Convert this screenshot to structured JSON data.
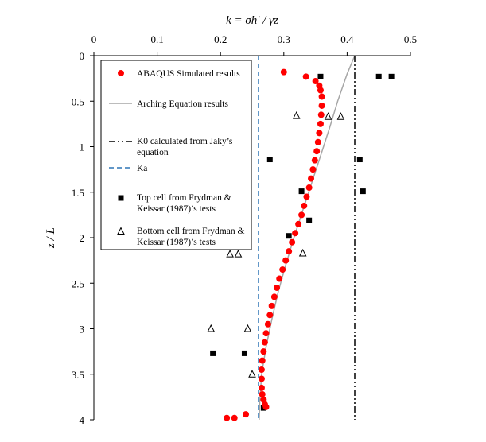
{
  "chart_data": {
    "type": "scatter",
    "x_axis": {
      "label": "k = σh' / γz",
      "range": [
        0,
        0.5
      ],
      "ticks": [
        "0",
        "0.1",
        "0.2",
        "0.3",
        "0.4",
        "0.5"
      ],
      "position": "top"
    },
    "y_axis": {
      "label": "z / L",
      "range": [
        0,
        4
      ],
      "inverted": true,
      "ticks": [
        "0",
        "0.5",
        "1",
        "1.5",
        "2",
        "2.5",
        "3",
        "3.5",
        "4"
      ]
    },
    "grid": false,
    "legend_position": "left",
    "legend_entries": [
      "ABAQUS Simulated results",
      "Arching Equation results",
      "K0 calculated from Jaky's equation",
      "Ka",
      "Top cell from Frydman & Keissar (1987)'s tests",
      "Bottom cell from Frydman & Keissar (1987)'s tests"
    ],
    "series": [
      {
        "name": "ABAQUS Simulated results",
        "style": "marker-circle",
        "color": "#ff0000",
        "points": [
          [
            0.3,
            0.18
          ],
          [
            0.335,
            0.23
          ],
          [
            0.35,
            0.28
          ],
          [
            0.356,
            0.33
          ],
          [
            0.358,
            0.38
          ],
          [
            0.36,
            0.45
          ],
          [
            0.36,
            0.55
          ],
          [
            0.359,
            0.65
          ],
          [
            0.358,
            0.75
          ],
          [
            0.356,
            0.85
          ],
          [
            0.354,
            0.95
          ],
          [
            0.352,
            1.05
          ],
          [
            0.349,
            1.15
          ],
          [
            0.346,
            1.25
          ],
          [
            0.343,
            1.35
          ],
          [
            0.34,
            1.45
          ],
          [
            0.336,
            1.55
          ],
          [
            0.332,
            1.65
          ],
          [
            0.328,
            1.75
          ],
          [
            0.323,
            1.85
          ],
          [
            0.318,
            1.95
          ],
          [
            0.313,
            2.05
          ],
          [
            0.308,
            2.15
          ],
          [
            0.303,
            2.25
          ],
          [
            0.298,
            2.35
          ],
          [
            0.293,
            2.45
          ],
          [
            0.289,
            2.55
          ],
          [
            0.285,
            2.65
          ],
          [
            0.281,
            2.75
          ],
          [
            0.278,
            2.85
          ],
          [
            0.275,
            2.95
          ],
          [
            0.272,
            3.05
          ],
          [
            0.27,
            3.15
          ],
          [
            0.268,
            3.25
          ],
          [
            0.266,
            3.35
          ],
          [
            0.265,
            3.45
          ],
          [
            0.265,
            3.55
          ],
          [
            0.265,
            3.65
          ],
          [
            0.266,
            3.72
          ],
          [
            0.268,
            3.78
          ],
          [
            0.27,
            3.83
          ],
          [
            0.272,
            3.86
          ],
          [
            0.24,
            3.94
          ],
          [
            0.222,
            3.98
          ],
          [
            0.21,
            3.98
          ]
        ]
      },
      {
        "name": "Arching Equation results",
        "style": "line",
        "color": "#a6a6a6",
        "points": [
          [
            0.412,
            0.0
          ],
          [
            0.4,
            0.2
          ],
          [
            0.385,
            0.5
          ],
          [
            0.372,
            0.8
          ],
          [
            0.358,
            1.1
          ],
          [
            0.344,
            1.4
          ],
          [
            0.33,
            1.7
          ],
          [
            0.316,
            2.0
          ],
          [
            0.303,
            2.3
          ],
          [
            0.291,
            2.6
          ],
          [
            0.281,
            2.9
          ],
          [
            0.272,
            3.2
          ],
          [
            0.265,
            3.5
          ],
          [
            0.262,
            3.8
          ],
          [
            0.261,
            4.0
          ]
        ]
      },
      {
        "name": "K0 calculated from Jaky's equation",
        "style": "line-dashdot",
        "color": "#000000",
        "points": [
          [
            0.412,
            0
          ],
          [
            0.412,
            4
          ]
        ]
      },
      {
        "name": "Ka",
        "style": "line-dashed",
        "color": "#2e75b6",
        "points": [
          [
            0.26,
            0
          ],
          [
            0.26,
            4
          ]
        ]
      },
      {
        "name": "Top cell from Frydman & Keissar (1987)'s tests",
        "style": "marker-square",
        "color": "#000000",
        "points": [
          [
            0.358,
            0.23
          ],
          [
            0.45,
            0.23
          ],
          [
            0.47,
            0.23
          ],
          [
            0.278,
            1.14
          ],
          [
            0.42,
            1.14
          ],
          [
            0.328,
            1.49
          ],
          [
            0.425,
            1.49
          ],
          [
            0.34,
            1.81
          ],
          [
            0.308,
            1.98
          ],
          [
            0.188,
            3.27
          ],
          [
            0.238,
            3.27
          ],
          [
            0.268,
            3.87
          ]
        ]
      },
      {
        "name": "Bottom cell from Frydman & Keissar (1987)'s tests",
        "style": "marker-triangle",
        "color": "#000000",
        "points": [
          [
            0.32,
            0.66
          ],
          [
            0.37,
            0.67
          ],
          [
            0.39,
            0.67
          ],
          [
            0.215,
            2.18
          ],
          [
            0.228,
            2.18
          ],
          [
            0.33,
            2.17
          ],
          [
            0.185,
            3.0
          ],
          [
            0.243,
            3.0
          ],
          [
            0.25,
            3.5
          ]
        ]
      }
    ]
  }
}
